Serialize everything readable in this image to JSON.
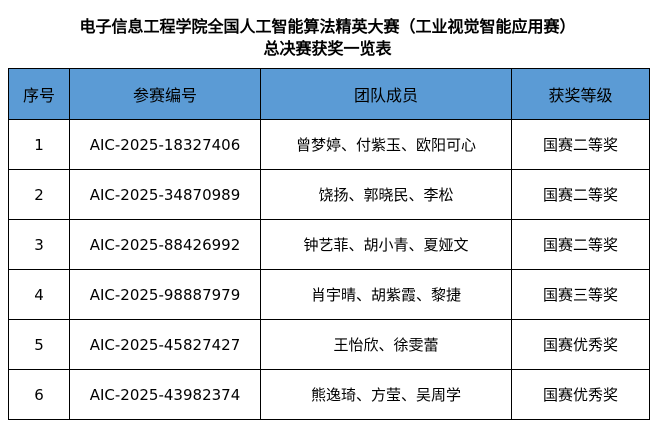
{
  "title": {
    "line1": "电子信息工程学院全国人工智能算法精英大赛（工业视觉智能应用赛）",
    "line2": "总决赛获奖一览表"
  },
  "colors": {
    "header_bg": "#5b9bd5"
  },
  "table": {
    "headers": [
      "序号",
      "参赛编号",
      "团队成员",
      "获奖等级"
    ],
    "rows": [
      [
        "1",
        "AIC-2025-18327406",
        "曾梦婷、付紫玉、欧阳可心",
        "国赛二等奖"
      ],
      [
        "2",
        "AIC-2025-34870989",
        "饶扬、郭晓民、李松",
        "国赛二等奖"
      ],
      [
        "3",
        "AIC-2025-88426992",
        "钟艺菲、胡小青、夏娅文",
        "国赛二等奖"
      ],
      [
        "4",
        "AIC-2025-98887979",
        "肖宇晴、胡紫霞、黎捷",
        "国赛三等奖"
      ],
      [
        "5",
        "AIC-2025-45827427",
        "王怡欣、徐雯蕾",
        "国赛优秀奖"
      ],
      [
        "6",
        "AIC-2025-43982374",
        "熊逸琦、方莹、吴周学",
        "国赛优秀奖"
      ]
    ]
  }
}
